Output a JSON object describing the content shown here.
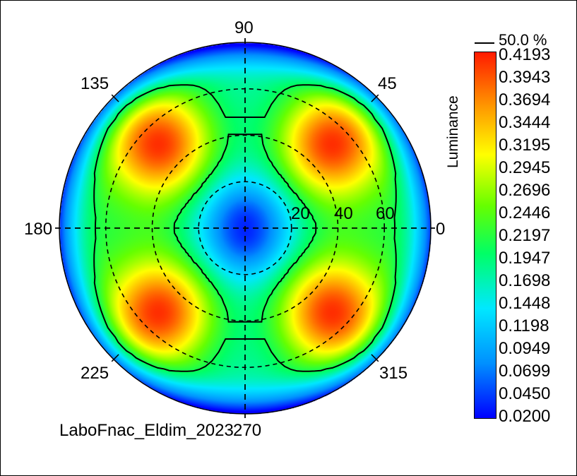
{
  "chart_data": {
    "type": "heatmap",
    "projection": "polar",
    "colorbar": {
      "title": "Luminance",
      "ticks": [
        "0.4193",
        "0.3943",
        "0.3694",
        "0.3444",
        "0.3195",
        "0.2945",
        "0.2696",
        "0.2446",
        "0.2197",
        "0.1947",
        "0.1698",
        "0.1448",
        "0.1198",
        "0.0949",
        "0.0699",
        "0.0450",
        "0.0200"
      ],
      "min": 0.02,
      "max": 0.4193,
      "colors": [
        "#0000ff",
        "#0090ff",
        "#00e8ff",
        "#00ff66",
        "#66ff00",
        "#ffff00",
        "#ff9900",
        "#ff1a00"
      ]
    },
    "contour_legend": "50.0 %",
    "angle_labels": [
      "90",
      "45",
      "0",
      "315",
      "270",
      "225",
      "180",
      "135"
    ],
    "radial_labels": [
      "20",
      "40",
      "60"
    ],
    "radial_max": 80,
    "angle_ticks_deg": [
      0,
      45,
      90,
      135,
      180,
      225,
      270,
      315
    ],
    "radial_circles": [
      20,
      40,
      60
    ],
    "lobes": [
      {
        "azimuth_deg": 45,
        "inclination_deg": 52,
        "luminance": 0.41
      },
      {
        "azimuth_deg": 135,
        "inclination_deg": 52,
        "luminance": 0.41
      },
      {
        "azimuth_deg": 225,
        "inclination_deg": 52,
        "luminance": 0.41
      },
      {
        "azimuth_deg": 315,
        "inclination_deg": 52,
        "luminance": 0.41
      }
    ],
    "center_luminance": 0.03,
    "footer": "LaboFnac_Eldim_2023"
  }
}
